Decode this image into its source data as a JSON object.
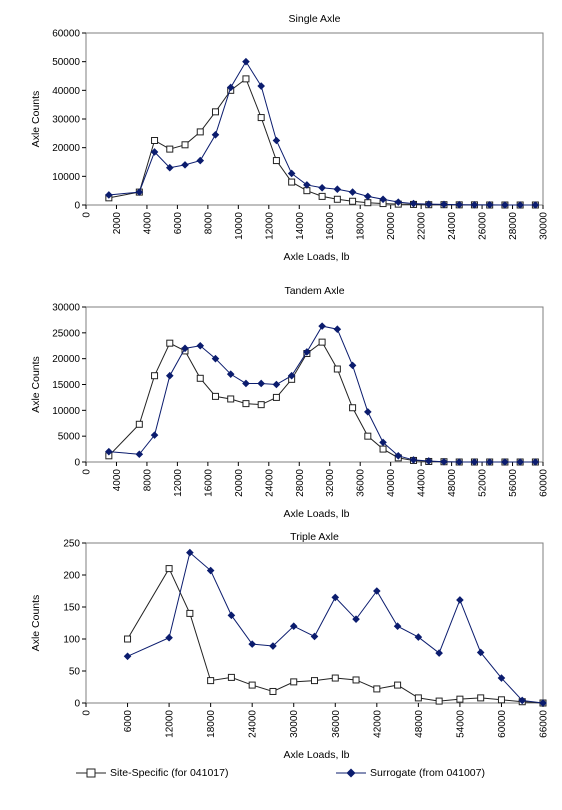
{
  "legend": {
    "site_specific": "Site-Specific (for 041017)",
    "surrogate": "Surrogate (from 041007)"
  },
  "colors": {
    "site_specific": "#222222",
    "surrogate": "#0b1c6e",
    "border": "#7f7f7f"
  },
  "chart_data": [
    {
      "type": "line",
      "title": "Single Axle",
      "xlabel": "Axle Loads, lb",
      "ylabel": "Axle Counts",
      "xlim": [
        0,
        30000
      ],
      "ylim": [
        0,
        60000
      ],
      "x_ticks": [
        "0",
        "2000",
        "4000",
        "6000",
        "8000",
        "10000",
        "12000",
        "14000",
        "16000",
        "18000",
        "20000",
        "22000",
        "24000",
        "26000",
        "28000",
        "30000"
      ],
      "y_ticks": [
        "0",
        "10000",
        "20000",
        "30000",
        "40000",
        "50000",
        "60000"
      ],
      "x": [
        1500,
        3500,
        4500,
        5500,
        6500,
        7500,
        8500,
        9500,
        10500,
        11500,
        12500,
        13500,
        14500,
        15500,
        16500,
        17500,
        18500,
        19500,
        20500,
        21500,
        22500,
        23500,
        24500,
        25500,
        26500,
        27500,
        28500,
        29500
      ],
      "series": [
        {
          "name": "Site-Specific (for 041017)",
          "marker": "square",
          "values": [
            2500,
            4500,
            22500,
            19500,
            21000,
            25500,
            32500,
            40000,
            44000,
            30500,
            15500,
            8000,
            5000,
            3000,
            2000,
            1300,
            800,
            500,
            300,
            200,
            100,
            100,
            50,
            50,
            0,
            0,
            0,
            0
          ]
        },
        {
          "name": "Surrogate (from 041007)",
          "marker": "diamond",
          "values": [
            3500,
            4500,
            18500,
            13000,
            14000,
            15500,
            24500,
            41000,
            50000,
            41500,
            22500,
            11000,
            7000,
            6000,
            5500,
            4500,
            3000,
            2000,
            1000,
            500,
            300,
            200,
            100,
            50,
            50,
            0,
            0,
            0
          ]
        }
      ]
    },
    {
      "type": "line",
      "title": "Tandem Axle",
      "xlabel": "Axle Loads, lb",
      "ylabel": "Axle Counts",
      "xlim": [
        0,
        60000
      ],
      "ylim": [
        0,
        30000
      ],
      "x_ticks": [
        "0",
        "4000",
        "8000",
        "12000",
        "16000",
        "20000",
        "24000",
        "28000",
        "32000",
        "36000",
        "40000",
        "44000",
        "48000",
        "52000",
        "56000",
        "60000"
      ],
      "y_ticks": [
        "0",
        "5000",
        "10000",
        "15000",
        "20000",
        "25000",
        "30000"
      ],
      "x": [
        3000,
        7000,
        9000,
        11000,
        13000,
        15000,
        17000,
        19000,
        21000,
        23000,
        25000,
        27000,
        29000,
        31000,
        33000,
        35000,
        37000,
        39000,
        41000,
        43000,
        45000,
        47000,
        49000,
        51000,
        53000,
        55000,
        57000,
        59000
      ],
      "series": [
        {
          "name": "Site-Specific (for 041017)",
          "marker": "square",
          "values": [
            1200,
            7300,
            16700,
            23000,
            21500,
            16200,
            12700,
            12200,
            11300,
            11100,
            12500,
            16000,
            21000,
            23200,
            18000,
            10500,
            5000,
            2500,
            800,
            300,
            100,
            50,
            0,
            0,
            0,
            0,
            0,
            0
          ]
        },
        {
          "name": "Surrogate (from 041007)",
          "marker": "diamond",
          "values": [
            2000,
            1500,
            5200,
            16700,
            22000,
            22500,
            20000,
            17000,
            15200,
            15200,
            15000,
            16700,
            21300,
            26300,
            25700,
            18700,
            9700,
            3800,
            1200,
            400,
            200,
            50,
            0,
            0,
            0,
            0,
            0,
            0
          ]
        }
      ]
    },
    {
      "type": "line",
      "title": "Triple Axle",
      "xlabel": "Axle Loads, lb",
      "ylabel": "Axle Counts",
      "xlim": [
        0,
        66000
      ],
      "ylim": [
        0,
        250
      ],
      "x_ticks": [
        "0",
        "6000",
        "12000",
        "18000",
        "24000",
        "30000",
        "36000",
        "42000",
        "48000",
        "54000",
        "60000",
        "66000"
      ],
      "y_ticks": [
        "0",
        "50",
        "100",
        "150",
        "200",
        "250"
      ],
      "x": [
        6000,
        12000,
        15000,
        18000,
        21000,
        24000,
        27000,
        30000,
        33000,
        36000,
        39000,
        42000,
        45000,
        48000,
        51000,
        54000,
        57000,
        60000,
        63000,
        66000
      ],
      "series": [
        {
          "name": "Site-Specific (for 041017)",
          "marker": "square",
          "values": [
            100,
            210,
            140,
            35,
            40,
            28,
            18,
            33,
            35,
            39,
            36,
            22,
            28,
            8,
            3,
            6,
            8,
            5,
            2,
            0
          ]
        },
        {
          "name": "Surrogate (from 041007)",
          "marker": "diamond",
          "values": [
            73,
            102,
            235,
            207,
            137,
            92,
            89,
            120,
            104,
            165,
            131,
            175,
            120,
            103,
            78,
            161,
            79,
            39,
            4,
            0
          ]
        }
      ]
    }
  ]
}
